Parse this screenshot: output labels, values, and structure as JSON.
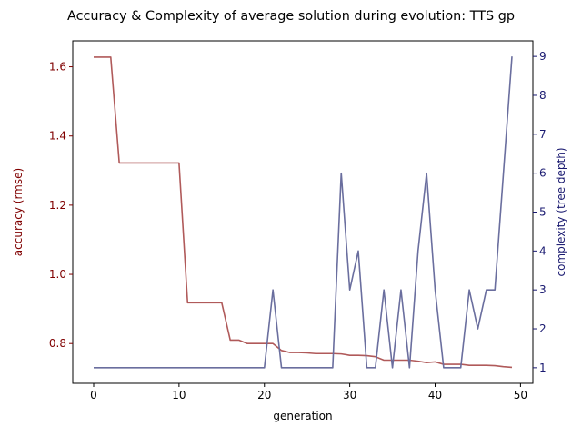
{
  "chart_data": {
    "type": "line",
    "title": "Accuracy & Complexity of average solution during evolution: TTS gp",
    "xlabel": "generation",
    "xlim": [
      -2.45,
      51.45
    ],
    "xticks": [
      0,
      10,
      20,
      30,
      40,
      50
    ],
    "left_axis": {
      "label": "accuracy (rmse)",
      "color": "#800000",
      "lim": [
        0.685,
        1.675
      ],
      "ticks": [
        0.8,
        1.0,
        1.2,
        1.4,
        1.6
      ],
      "tick_labels": [
        "0.8",
        "1.0",
        "1.2",
        "1.4",
        "1.6"
      ]
    },
    "right_axis": {
      "label": "complexity (tree depth)",
      "color": "#191970",
      "lim": [
        0.6,
        9.4
      ],
      "ticks": [
        1,
        2,
        3,
        4,
        5,
        6,
        7,
        8,
        9
      ],
      "tick_labels": [
        "1",
        "2",
        "3",
        "4",
        "5",
        "6",
        "7",
        "8",
        "9"
      ]
    },
    "series": [
      {
        "axis": "left",
        "color": "#b05a5a",
        "x": [
          0,
          1,
          2,
          3,
          4,
          5,
          6,
          7,
          8,
          9,
          10,
          11,
          12,
          13,
          14,
          15,
          16,
          17,
          18,
          19,
          20,
          21,
          22,
          23,
          24,
          25,
          26,
          27,
          28,
          29,
          30,
          31,
          32,
          33,
          34,
          35,
          36,
          37,
          38,
          39,
          40,
          41,
          42,
          43,
          44,
          45,
          46,
          47,
          48,
          49
        ],
        "values": [
          1.628,
          1.628,
          1.628,
          1.322,
          1.322,
          1.322,
          1.322,
          1.322,
          1.322,
          1.322,
          1.322,
          0.918,
          0.918,
          0.918,
          0.918,
          0.918,
          0.81,
          0.81,
          0.8,
          0.8,
          0.8,
          0.8,
          0.78,
          0.774,
          0.774,
          0.773,
          0.771,
          0.771,
          0.771,
          0.77,
          0.766,
          0.766,
          0.765,
          0.762,
          0.752,
          0.752,
          0.752,
          0.752,
          0.749,
          0.745,
          0.747,
          0.74,
          0.74,
          0.74,
          0.737,
          0.737,
          0.737,
          0.736,
          0.733,
          0.731
        ]
      },
      {
        "axis": "right",
        "color": "#6a6e9e",
        "x": [
          0,
          1,
          2,
          3,
          4,
          5,
          6,
          7,
          8,
          9,
          10,
          11,
          12,
          13,
          14,
          15,
          16,
          17,
          18,
          19,
          20,
          21,
          22,
          23,
          24,
          25,
          26,
          27,
          28,
          29,
          30,
          31,
          32,
          33,
          34,
          35,
          36,
          37,
          38,
          39,
          40,
          41,
          42,
          43,
          44,
          45,
          46,
          47,
          48,
          49
        ],
        "values": [
          1,
          1,
          1,
          1,
          1,
          1,
          1,
          1,
          1,
          1,
          1,
          1,
          1,
          1,
          1,
          1,
          1,
          1,
          1,
          1,
          1,
          3,
          1,
          1,
          1,
          1,
          1,
          1,
          1,
          6,
          3,
          4,
          1,
          1,
          3,
          1,
          3,
          1,
          4,
          6,
          3,
          1,
          1,
          1,
          3,
          2,
          3,
          3,
          6,
          9
        ]
      }
    ]
  }
}
